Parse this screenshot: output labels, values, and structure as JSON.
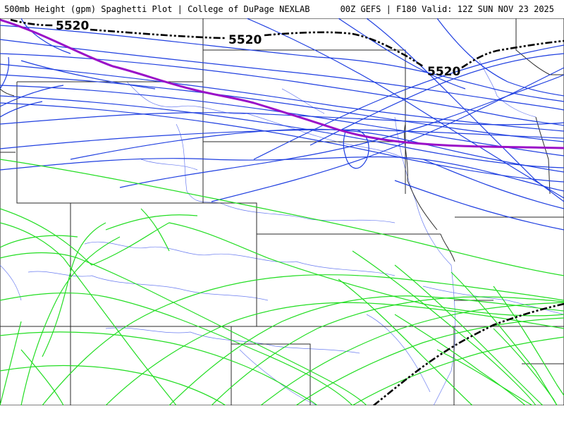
{
  "header": {
    "left_title": "500mb Height (gpm) Spaghetti Plot | College of DuPage NEXLAB",
    "right_title": "00Z GEFS | F180 Valid: 12Z SUN NOV 23 2025"
  },
  "map": {
    "contour_label": "5520",
    "colors": {
      "mean_contour": "#000000",
      "member_5520": "#9a10c8",
      "blue_members": "#1f3fe0",
      "green_members": "#22dd22",
      "state_borders": "#2a2a2a",
      "rivers": "#6a7cf0"
    }
  }
}
